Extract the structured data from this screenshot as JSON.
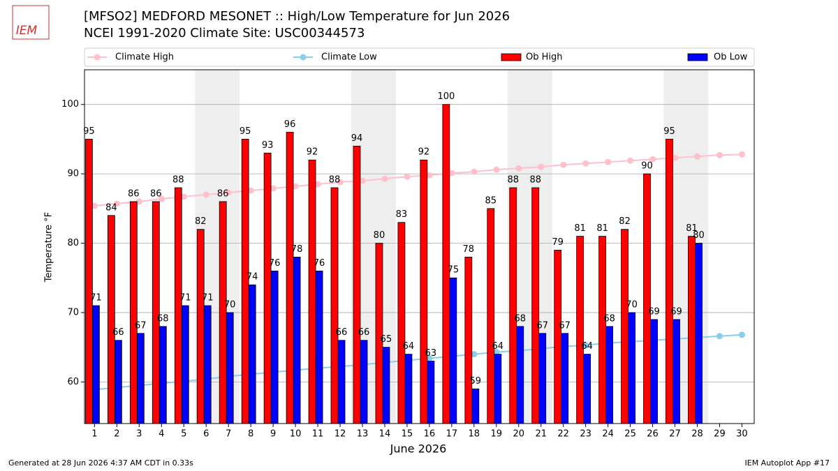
{
  "chart_data": {
    "type": "bar",
    "title": "[MFSO2] MEDFORD MESONET :: High/Low Temperature for Jun 2026",
    "subtitle": "NCEI 1991-2020 Climate Site: USC00344573",
    "logo_text": "IEM",
    "x_label": "June 2026",
    "y_label": "Temperature °F",
    "footer_left": "Generated at 28 Jun 2026 4:37 AM CDT in 0.33s",
    "footer_right": "IEM Autoplot App #17",
    "categories": [
      "1",
      "2",
      "3",
      "4",
      "5",
      "6",
      "7",
      "8",
      "9",
      "10",
      "11",
      "12",
      "13",
      "14",
      "15",
      "16",
      "17",
      "18",
      "19",
      "20",
      "21",
      "22",
      "23",
      "24",
      "25",
      "26",
      "27",
      "28",
      "29",
      "30"
    ],
    "ylim": [
      54,
      105
    ],
    "yticks": [
      60,
      70,
      80,
      90,
      100
    ],
    "grid": true,
    "legend": "top",
    "series": [
      {
        "name": "Climate High",
        "kind": "line",
        "color": "#ffc0cb",
        "values": [
          85.4,
          85.7,
          86.0,
          86.4,
          86.7,
          87.0,
          87.3,
          87.6,
          87.9,
          88.2,
          88.5,
          88.8,
          89.0,
          89.3,
          89.6,
          89.8,
          90.1,
          90.3,
          90.6,
          90.8,
          91.0,
          91.3,
          91.5,
          91.7,
          91.9,
          92.1,
          92.3,
          92.5,
          92.7,
          92.8
        ]
      },
      {
        "name": "Climate Low",
        "kind": "line",
        "color": "#87ceeb",
        "values": [
          58.9,
          59.2,
          59.5,
          59.8,
          60.1,
          60.4,
          60.8,
          61.1,
          61.4,
          61.7,
          62.0,
          62.2,
          62.5,
          62.8,
          63.1,
          63.4,
          63.7,
          64.0,
          64.3,
          64.5,
          64.8,
          65.1,
          65.3,
          65.6,
          65.8,
          66.0,
          66.2,
          66.4,
          66.6,
          66.8
        ]
      },
      {
        "name": "Ob High",
        "kind": "bar",
        "color": "#ff0000",
        "values": [
          95,
          84,
          86,
          86,
          88,
          82,
          86,
          95,
          93,
          96,
          92,
          88,
          94,
          80,
          83,
          92,
          100,
          78,
          85,
          88,
          88,
          79,
          81,
          81,
          82,
          90,
          95,
          81,
          null,
          null
        ]
      },
      {
        "name": "Ob Low",
        "kind": "bar",
        "color": "#0000ff",
        "values": [
          71,
          66,
          67,
          68,
          71,
          71,
          70,
          74,
          76,
          78,
          76,
          66,
          66,
          65,
          64,
          63,
          75,
          59,
          64,
          68,
          67,
          67,
          64,
          68,
          70,
          69,
          69,
          80,
          null,
          null
        ]
      }
    ]
  }
}
